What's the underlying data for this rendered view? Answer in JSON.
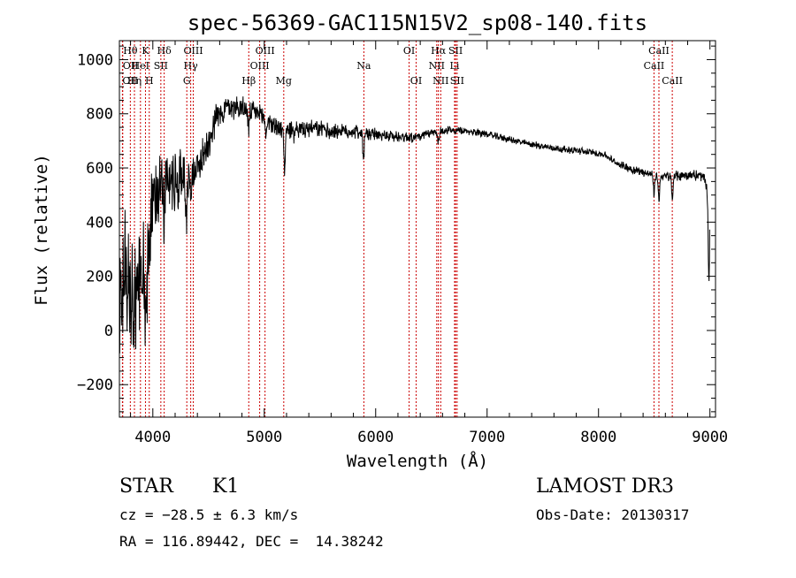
{
  "chart_data": {
    "type": "line",
    "title": "spec-56369-GAC115N15V2_sp08-140.fits",
    "xlabel": "Wavelength (Å)",
    "ylabel": "Flux (relative)",
    "xlim": [
      3700,
      9050
    ],
    "ylim": [
      -320,
      1070
    ],
    "x_ticks": [
      {
        "value": 4000,
        "label": "4000"
      },
      {
        "value": 5000,
        "label": "5000"
      },
      {
        "value": 6000,
        "label": "6000"
      },
      {
        "value": 7000,
        "label": "7000"
      },
      {
        "value": 8000,
        "label": "8000"
      },
      {
        "value": 9000,
        "label": "9000"
      }
    ],
    "y_ticks": [
      {
        "value": -200,
        "label": "−200"
      },
      {
        "value": 0,
        "label": "0"
      },
      {
        "value": 200,
        "label": "200"
      },
      {
        "value": 400,
        "label": "400"
      },
      {
        "value": 600,
        "label": "600"
      },
      {
        "value": 800,
        "label": "800"
      },
      {
        "value": 1000,
        "label": "1000"
      }
    ],
    "spectrum_anchors": [
      [
        3700,
        100
      ],
      [
        3750,
        250
      ],
      [
        3800,
        120
      ],
      [
        3850,
        100
      ],
      [
        3900,
        220
      ],
      [
        3950,
        200
      ],
      [
        3980,
        420
      ],
      [
        4030,
        520
      ],
      [
        4080,
        580
      ],
      [
        4150,
        540
      ],
      [
        4200,
        560
      ],
      [
        4250,
        580
      ],
      [
        4300,
        560
      ],
      [
        4340,
        590
      ],
      [
        4380,
        600
      ],
      [
        4420,
        620
      ],
      [
        4460,
        660
      ],
      [
        4500,
        700
      ],
      [
        4560,
        780
      ],
      [
        4650,
        820
      ],
      [
        4750,
        830
      ],
      [
        4860,
        810
      ],
      [
        4950,
        800
      ],
      [
        5050,
        770
      ],
      [
        5150,
        740
      ],
      [
        5250,
        745
      ],
      [
        5350,
        740
      ],
      [
        5450,
        745
      ],
      [
        5550,
        740
      ],
      [
        5650,
        735
      ],
      [
        5750,
        735
      ],
      [
        5850,
        735
      ],
      [
        5950,
        725
      ],
      [
        6100,
        718
      ],
      [
        6250,
        715
      ],
      [
        6400,
        715
      ],
      [
        6550,
        735
      ],
      [
        6650,
        738
      ],
      [
        6800,
        735
      ],
      [
        6950,
        730
      ],
      [
        7100,
        715
      ],
      [
        7300,
        695
      ],
      [
        7500,
        680
      ],
      [
        7700,
        668
      ],
      [
        7900,
        660
      ],
      [
        8050,
        650
      ],
      [
        8150,
        620
      ],
      [
        8300,
        595
      ],
      [
        8450,
        580
      ],
      [
        8550,
        568
      ],
      [
        8700,
        570
      ],
      [
        8850,
        575
      ],
      [
        8950,
        565
      ],
      [
        9000,
        470
      ]
    ],
    "spectrum_noise": [
      [
        3700,
        180
      ],
      [
        3950,
        150
      ],
      [
        4050,
        110
      ],
      [
        4300,
        70
      ],
      [
        4600,
        40
      ],
      [
        5000,
        28
      ],
      [
        5500,
        24
      ],
      [
        6500,
        14
      ],
      [
        7000,
        10
      ],
      [
        8000,
        10
      ],
      [
        8500,
        13
      ],
      [
        9000,
        18
      ]
    ],
    "absorption_features": [
      [
        3934,
        180
      ],
      [
        3968,
        150
      ],
      [
        4102,
        160
      ],
      [
        4227,
        80
      ],
      [
        4300,
        150
      ],
      [
        4340,
        90
      ],
      [
        4383,
        60
      ],
      [
        4861,
        70
      ],
      [
        5015,
        60
      ],
      [
        5183,
        160
      ],
      [
        5270,
        40
      ],
      [
        5890,
        110
      ],
      [
        6563,
        40
      ],
      [
        8498,
        70
      ],
      [
        8542,
        90
      ],
      [
        8662,
        90
      ],
      [
        8990,
        300
      ]
    ],
    "spectral_lines": [
      {
        "label": "OII",
        "wavelength": 3727,
        "row": 2,
        "anchor": "start"
      },
      {
        "label": "OII",
        "wavelength": 3730,
        "row": 1,
        "anchor": "start"
      },
      {
        "label": "Hθ",
        "wavelength": 3798,
        "row": 0,
        "anchor": "middle"
      },
      {
        "label": "Hη",
        "wavelength": 3835,
        "row": 2,
        "anchor": "middle"
      },
      {
        "label": "HeI",
        "wavelength": 3889,
        "row": 1,
        "anchor": "middle"
      },
      {
        "label": "K",
        "wavelength": 3934,
        "row": 0,
        "anchor": "middle"
      },
      {
        "label": "H",
        "wavelength": 3968,
        "row": 2,
        "anchor": "middle"
      },
      {
        "label": "SII",
        "wavelength": 4072,
        "row": 1,
        "anchor": "middle"
      },
      {
        "label": "Hδ",
        "wavelength": 4102,
        "row": 0,
        "anchor": "middle"
      },
      {
        "label": "G",
        "wavelength": 4305,
        "row": 2,
        "anchor": "middle"
      },
      {
        "label": "Hγ",
        "wavelength": 4340,
        "row": 1,
        "anchor": "middle"
      },
      {
        "label": "OIII",
        "wavelength": 4363,
        "row": 0,
        "anchor": "middle"
      },
      {
        "label": "Hβ",
        "wavelength": 4861,
        "row": 2,
        "anchor": "middle"
      },
      {
        "label": "OIII",
        "wavelength": 4959,
        "row": 1,
        "anchor": "middle"
      },
      {
        "label": "OIII",
        "wavelength": 5007,
        "row": 0,
        "anchor": "middle"
      },
      {
        "label": "Mg",
        "wavelength": 5175,
        "row": 2,
        "anchor": "middle"
      },
      {
        "label": "Na",
        "wavelength": 5894,
        "row": 1,
        "anchor": "middle"
      },
      {
        "label": "OI",
        "wavelength": 6300,
        "row": 0,
        "anchor": "middle"
      },
      {
        "label": "OI",
        "wavelength": 6363,
        "row": 2,
        "anchor": "middle"
      },
      {
        "label": "NII",
        "wavelength": 6548,
        "row": 1,
        "anchor": "middle"
      },
      {
        "label": "Hα",
        "wavelength": 6563,
        "row": 0,
        "anchor": "middle"
      },
      {
        "label": "NII",
        "wavelength": 6584,
        "row": 2,
        "anchor": "middle"
      },
      {
        "label": "Li",
        "wavelength": 6708,
        "row": 1,
        "anchor": "middle"
      },
      {
        "label": "SII",
        "wavelength": 6717,
        "row": 0,
        "anchor": "middle"
      },
      {
        "label": "SII",
        "wavelength": 6731,
        "row": 2,
        "anchor": "middle"
      },
      {
        "label": "CaII",
        "wavelength": 8498,
        "row": 1,
        "anchor": "middle"
      },
      {
        "label": "CaII",
        "wavelength": 8542,
        "row": 0,
        "anchor": "middle"
      },
      {
        "label": "CaII",
        "wavelength": 8662,
        "row": 2,
        "anchor": "middle"
      }
    ]
  },
  "info": {
    "class_label": "STAR",
    "subclass_label": "K1",
    "cz_text": "cz = −28.5 ± 6.3 km/s",
    "coords_text": "RA = 116.89442, DEC =  14.38242",
    "survey_label": "LAMOST DR3",
    "obs_date_text": "Obs-Date: 20130317"
  }
}
